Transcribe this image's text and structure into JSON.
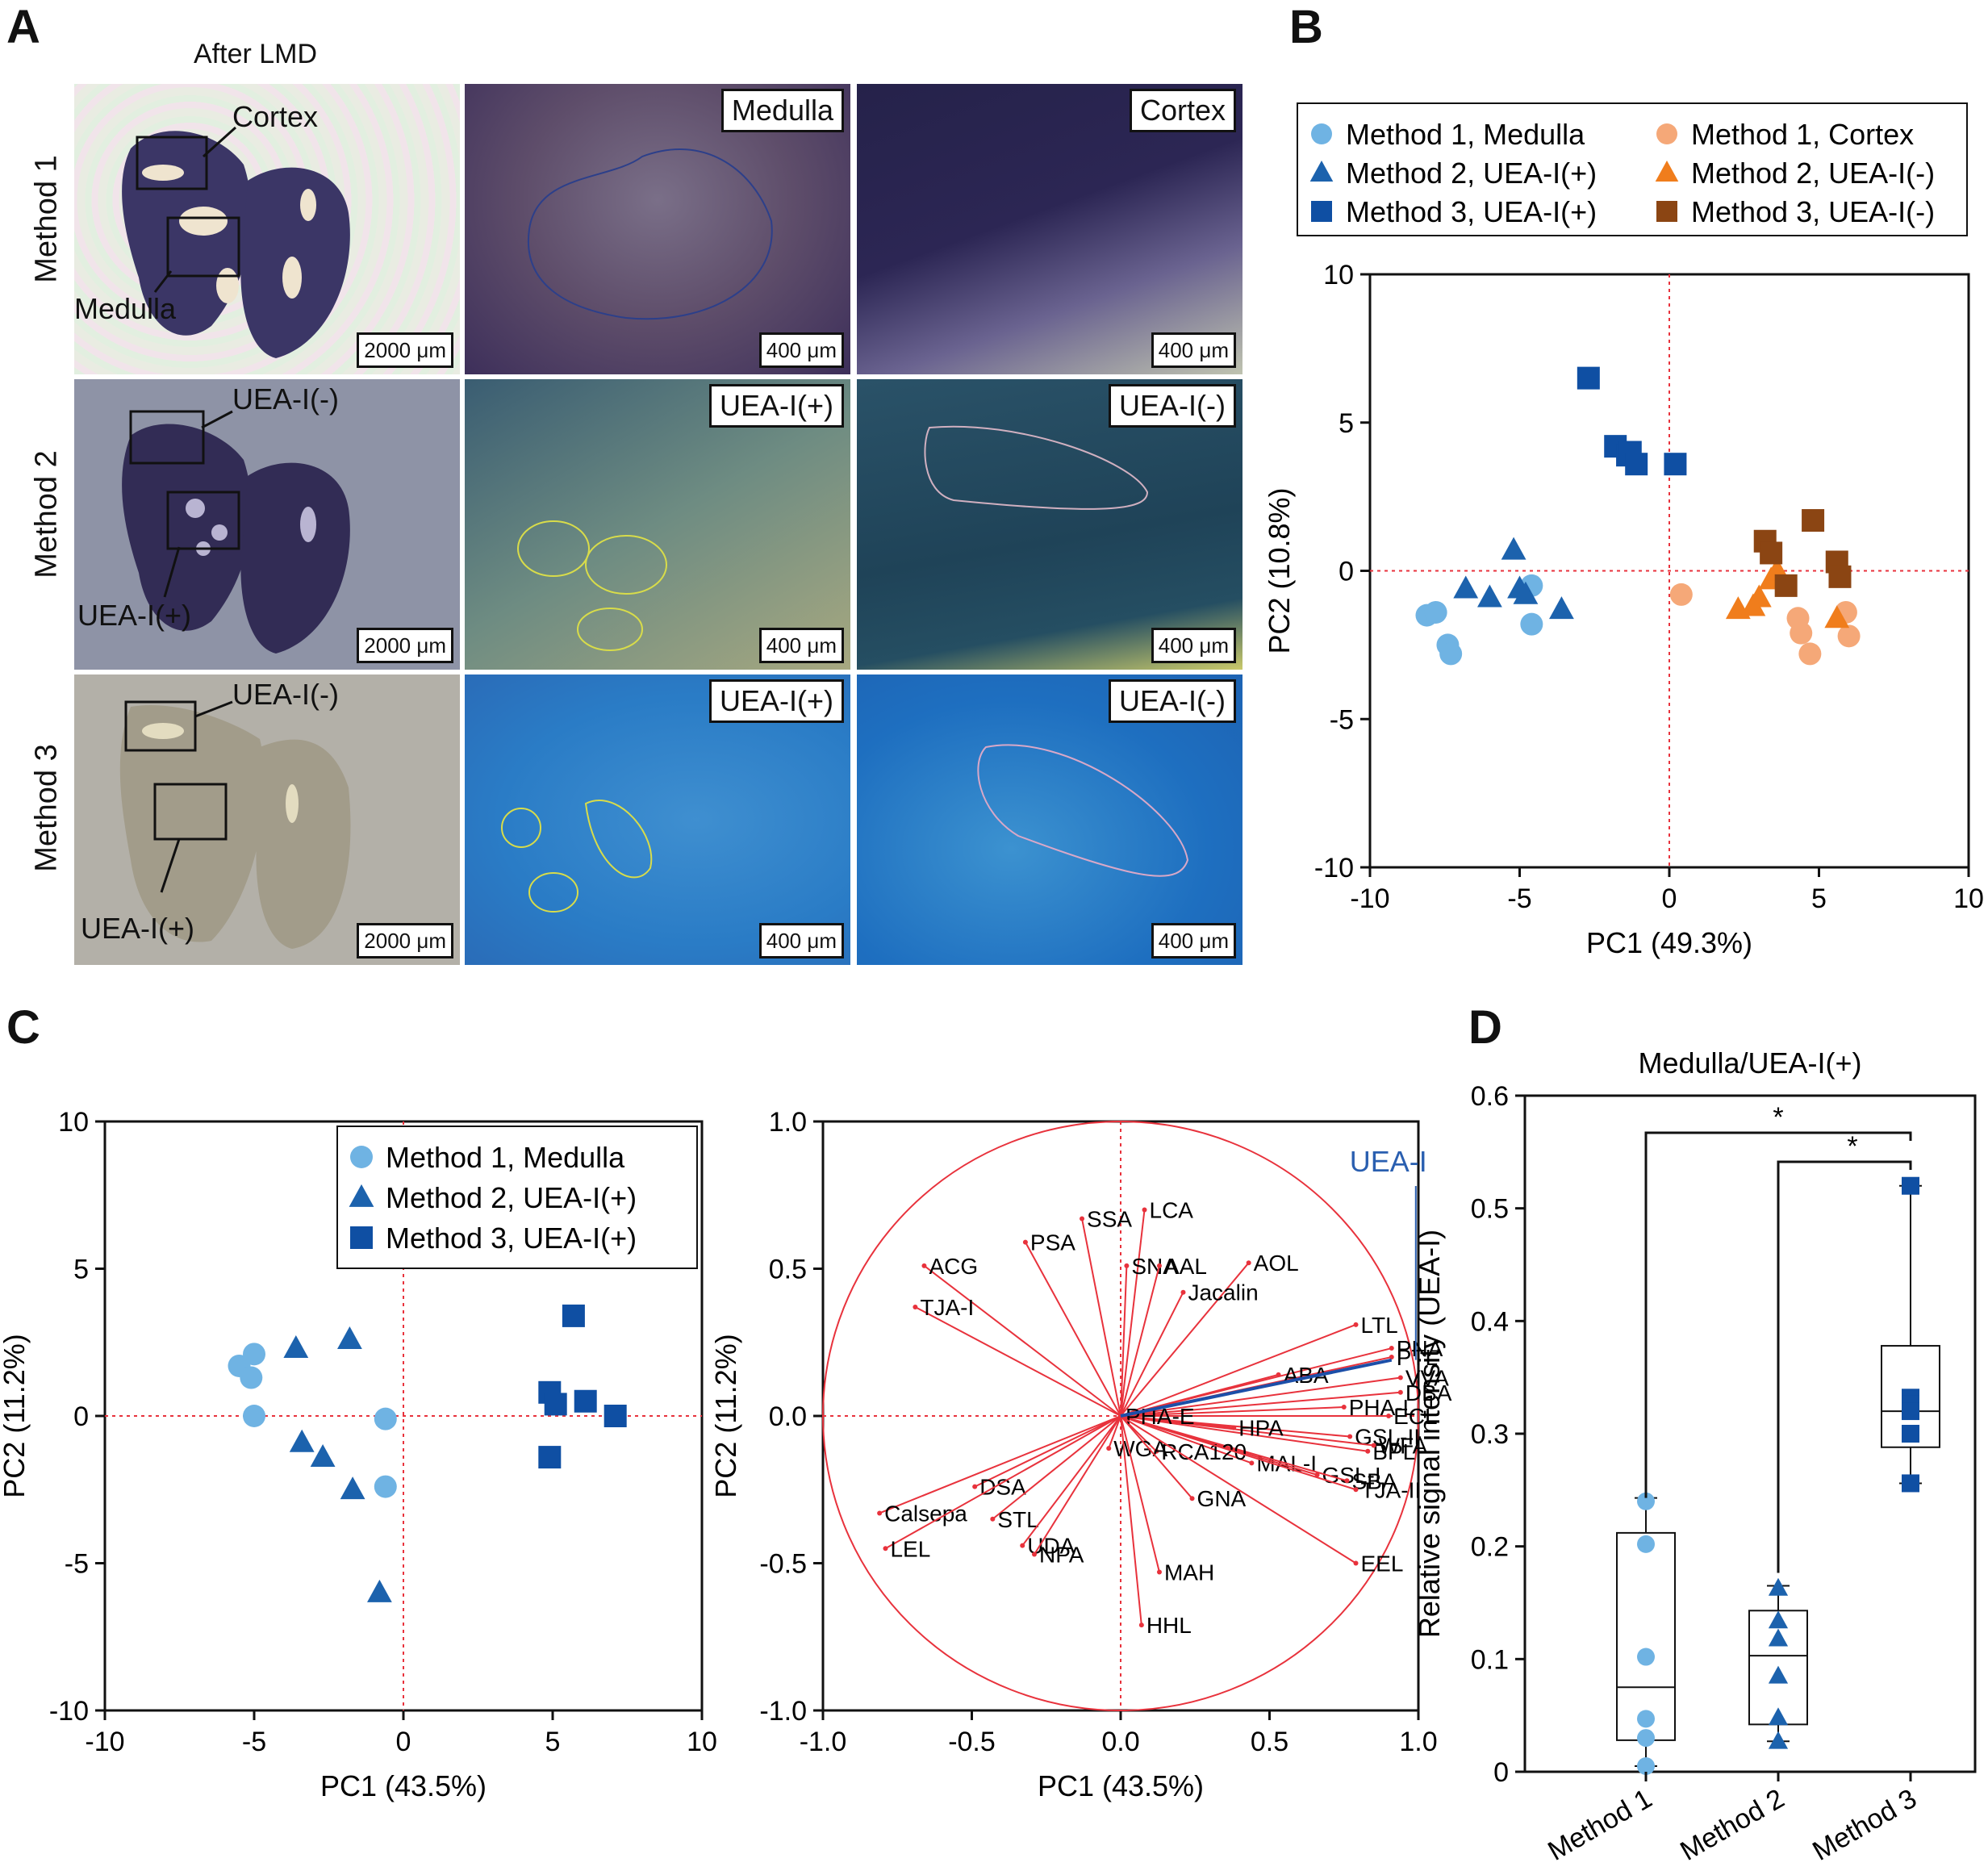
{
  "panel_labels": {
    "a": "A",
    "b": "B",
    "c": "C",
    "d": "D"
  },
  "panelA": {
    "title": "After LMD",
    "rows": [
      {
        "label": "Method 1",
        "callout_top": "Cortex",
        "callout_bottom": "Medulla",
        "tag_mid": "Medulla",
        "tag_right": "Cortex"
      },
      {
        "label": "Method 2",
        "callout_top": "UEA-I(-)",
        "callout_bottom": "UEA-I(+)",
        "tag_mid": "UEA-I(+)",
        "tag_right": "UEA-I(-)"
      },
      {
        "label": "Method 3",
        "callout_top": "UEA-I(-)",
        "callout_bottom": "UEA-I(+)",
        "tag_mid": "UEA-I(+)",
        "tag_right": "UEA-I(-)"
      }
    ],
    "scale_large": "2000 μm",
    "scale_small": "400 μm"
  },
  "chart_data": [
    {
      "id": "B",
      "type": "scatter",
      "xlabel": "PC1 (49.3%)",
      "ylabel": "PC2 (10.8%)",
      "xlim": [
        -10,
        10
      ],
      "ylim": [
        -10,
        10
      ],
      "xticks": [
        "-10",
        "-5",
        "0",
        "5",
        "10"
      ],
      "yticks": [
        "10",
        "5",
        "0",
        "-5",
        "-10"
      ],
      "legend": [
        "Method 1, Medulla",
        "Method 1, Cortex",
        "Method 2, UEA-I(+)",
        "Method 2, UEA-I(-)",
        "Method 3, UEA-I(+)",
        "Method 3, UEA-I(-)"
      ],
      "series": [
        {
          "name": "Method 1, Medulla",
          "marker": "circle",
          "color": "#6fb3e3",
          "points": [
            [
              -8.1,
              -1.5
            ],
            [
              -7.8,
              -1.4
            ],
            [
              -7.4,
              -2.5
            ],
            [
              -7.3,
              -2.8
            ],
            [
              -4.6,
              -0.5
            ],
            [
              -4.6,
              -1.8
            ]
          ]
        },
        {
          "name": "Method 1, Cortex",
          "marker": "circle",
          "color": "#f5a878",
          "points": [
            [
              0.4,
              -0.8
            ],
            [
              4.3,
              -1.6
            ],
            [
              4.4,
              -2.1
            ],
            [
              4.7,
              -2.8
            ],
            [
              5.9,
              -1.4
            ],
            [
              6.0,
              -2.2
            ]
          ]
        },
        {
          "name": "Method 2, UEA-I(+)",
          "marker": "triangle",
          "color": "#1c62ad",
          "points": [
            [
              -6.8,
              -0.6
            ],
            [
              -6.0,
              -0.9
            ],
            [
              -5.2,
              0.7
            ],
            [
              -5.0,
              -0.6
            ],
            [
              -4.8,
              -0.8
            ],
            [
              -3.6,
              -1.3
            ]
          ]
        },
        {
          "name": "Method 2, UEA-I(-)",
          "marker": "triangle",
          "color": "#f07d1c",
          "points": [
            [
              2.3,
              -1.3
            ],
            [
              2.8,
              -1.2
            ],
            [
              3.0,
              -0.9
            ],
            [
              3.4,
              -0.3
            ],
            [
              3.6,
              0.0
            ],
            [
              5.6,
              -1.6
            ]
          ]
        },
        {
          "name": "Method 3, UEA-I(+)",
          "marker": "square",
          "color": "#0f4fa3",
          "points": [
            [
              -2.7,
              6.5
            ],
            [
              -1.8,
              4.2
            ],
            [
              -1.4,
              3.9
            ],
            [
              -1.3,
              4.0
            ],
            [
              -1.1,
              3.6
            ],
            [
              0.2,
              3.6
            ]
          ]
        },
        {
          "name": "Method 3, UEA-I(-)",
          "marker": "square",
          "color": "#8b4513",
          "points": [
            [
              3.2,
              1.0
            ],
            [
              3.4,
              0.6
            ],
            [
              3.9,
              -0.5
            ],
            [
              4.8,
              1.7
            ],
            [
              5.6,
              0.3
            ],
            [
              5.7,
              -0.2
            ]
          ]
        }
      ]
    },
    {
      "id": "C-scores",
      "type": "scatter",
      "xlabel": "PC1 (43.5%)",
      "ylabel": "PC2 (11.2%)",
      "xlim": [
        -10,
        10
      ],
      "ylim": [
        -10,
        10
      ],
      "xticks": [
        "-10",
        "-5",
        "0",
        "5",
        "10"
      ],
      "yticks": [
        "10",
        "5",
        "0",
        "-5",
        "-10"
      ],
      "legend": [
        "Method 1, Medulla",
        "Method 2, UEA-I(+)",
        "Method 3, UEA-I(+)"
      ],
      "series": [
        {
          "name": "Method 1, Medulla",
          "marker": "circle",
          "color": "#6fb3e3",
          "points": [
            [
              -5.5,
              1.7
            ],
            [
              -5.0,
              2.1
            ],
            [
              -5.1,
              1.3
            ],
            [
              -5.0,
              0.0
            ],
            [
              -0.6,
              -0.1
            ],
            [
              -0.6,
              -2.4
            ]
          ]
        },
        {
          "name": "Method 2, UEA-I(+)",
          "marker": "triangle",
          "color": "#1c62ad",
          "points": [
            [
              -3.6,
              2.3
            ],
            [
              -1.8,
              2.6
            ],
            [
              -3.4,
              -0.9
            ],
            [
              -2.7,
              -1.4
            ],
            [
              -1.7,
              -2.5
            ],
            [
              -0.8,
              -6.0
            ]
          ]
        },
        {
          "name": "Method 3, UEA-I(+)",
          "marker": "square",
          "color": "#0f4fa3",
          "points": [
            [
              4.9,
              0.8
            ],
            [
              5.1,
              0.4
            ],
            [
              5.7,
              3.4
            ],
            [
              6.1,
              0.5
            ],
            [
              7.1,
              0.0
            ],
            [
              4.9,
              -1.4
            ]
          ]
        }
      ]
    },
    {
      "id": "C-loadings",
      "type": "scatter",
      "xlabel": "PC1 (43.5%)",
      "ylabel": "PC2 (11.2%)",
      "xlim": [
        -1.0,
        1.0
      ],
      "ylim": [
        -1.0,
        1.0
      ],
      "xticks": [
        "-1.0",
        "-0.5",
        "0.0",
        "0.5",
        "1.0"
      ],
      "yticks": [
        "1.0",
        "0.5",
        "0.0",
        "-0.5",
        "-1.0"
      ],
      "highlight": {
        "name": "UEA-I",
        "x": 0.91,
        "y": 0.19,
        "color": "#1c4fa8"
      },
      "loadings": [
        {
          "name": "LCA",
          "x": 0.08,
          "y": 0.7
        },
        {
          "name": "SSA",
          "x": -0.13,
          "y": 0.67
        },
        {
          "name": "PSA",
          "x": -0.32,
          "y": 0.59
        },
        {
          "name": "ACG",
          "x": -0.66,
          "y": 0.51
        },
        {
          "name": "TJA-I",
          "x": -0.69,
          "y": 0.37
        },
        {
          "name": "SNA",
          "x": 0.02,
          "y": 0.51
        },
        {
          "name": "AAL",
          "x": 0.13,
          "y": 0.51
        },
        {
          "name": "AOL",
          "x": 0.43,
          "y": 0.52
        },
        {
          "name": "Jacalin",
          "x": 0.21,
          "y": 0.42
        },
        {
          "name": "LTL",
          "x": 0.79,
          "y": 0.31
        },
        {
          "name": "PNA",
          "x": 0.91,
          "y": 0.23
        },
        {
          "name": "PTL",
          "x": 0.91,
          "y": 0.2
        },
        {
          "name": "ABA",
          "x": 0.53,
          "y": 0.14
        },
        {
          "name": "VVA",
          "x": 0.94,
          "y": 0.13
        },
        {
          "name": "DBA",
          "x": 0.94,
          "y": 0.08
        },
        {
          "name": "PHA-L",
          "x": 0.75,
          "y": 0.03
        },
        {
          "name": "ECL",
          "x": 0.9,
          "y": 0.0
        },
        {
          "name": "GSL-II",
          "x": 0.77,
          "y": -0.07
        },
        {
          "name": "BPL",
          "x": 0.83,
          "y": -0.12
        },
        {
          "name": "WFA",
          "x": 0.85,
          "y": -0.1
        },
        {
          "name": "HPA",
          "x": 0.38,
          "y": -0.04
        },
        {
          "name": "MAL-I",
          "x": 0.44,
          "y": -0.16
        },
        {
          "name": "GSL-I",
          "x": 0.66,
          "y": -0.2
        },
        {
          "name": "SBA",
          "x": 0.76,
          "y": -0.22
        },
        {
          "name": "RCA120",
          "x": 0.12,
          "y": -0.12
        },
        {
          "name": "TJA-II",
          "x": 0.79,
          "y": -0.25
        },
        {
          "name": "PHA-E",
          "x": 0.0,
          "y": 0.0
        },
        {
          "name": "WGA",
          "x": -0.04,
          "y": -0.11
        },
        {
          "name": "GNA",
          "x": 0.24,
          "y": -0.28
        },
        {
          "name": "EEL",
          "x": 0.79,
          "y": -0.5
        },
        {
          "name": "MAH",
          "x": 0.13,
          "y": -0.53
        },
        {
          "name": "HHL",
          "x": 0.07,
          "y": -0.71
        },
        {
          "name": "DSA",
          "x": -0.49,
          "y": -0.24
        },
        {
          "name": "Calsepa",
          "x": -0.81,
          "y": -0.33
        },
        {
          "name": "LEL",
          "x": -0.79,
          "y": -0.45
        },
        {
          "name": "STL",
          "x": -0.43,
          "y": -0.35
        },
        {
          "name": "UDA",
          "x": -0.33,
          "y": -0.44
        },
        {
          "name": "NPA",
          "x": -0.29,
          "y": -0.47
        }
      ]
    },
    {
      "id": "D",
      "type": "box",
      "title": "Medulla/UEA-I(+)",
      "ylabel": "Relative signal intensity (UEA-I)",
      "ylim": [
        0,
        0.6
      ],
      "yticks": [
        "0.6",
        "0.5",
        "0.4",
        "0.3",
        "0.2",
        "0.1",
        "0"
      ],
      "categories": [
        "Method 1",
        "Method 2",
        "Method 3"
      ],
      "significance": [
        "*",
        "*"
      ],
      "boxes": [
        {
          "name": "Method 1",
          "marker": "circle",
          "color": "#6fb3e3",
          "min": 0.005,
          "q1": 0.028,
          "median": 0.075,
          "q3": 0.212,
          "max": 0.243,
          "points": [
            0.24,
            0.202,
            0.102,
            0.047,
            0.03,
            0.005
          ]
        },
        {
          "name": "Method 2",
          "marker": "triangle",
          "color": "#1c62ad",
          "min": 0.027,
          "q1": 0.042,
          "median": 0.103,
          "q3": 0.143,
          "max": 0.165,
          "points": [
            0.163,
            0.134,
            0.118,
            0.085,
            0.048,
            0.027
          ]
        },
        {
          "name": "Method 3",
          "marker": "square",
          "color": "#0f4fa3",
          "min": 0.256,
          "q1": 0.288,
          "median": 0.32,
          "q3": 0.378,
          "max": 0.52,
          "points": [
            0.52,
            0.332,
            0.326,
            0.32,
            0.3,
            0.256
          ]
        }
      ]
    }
  ]
}
